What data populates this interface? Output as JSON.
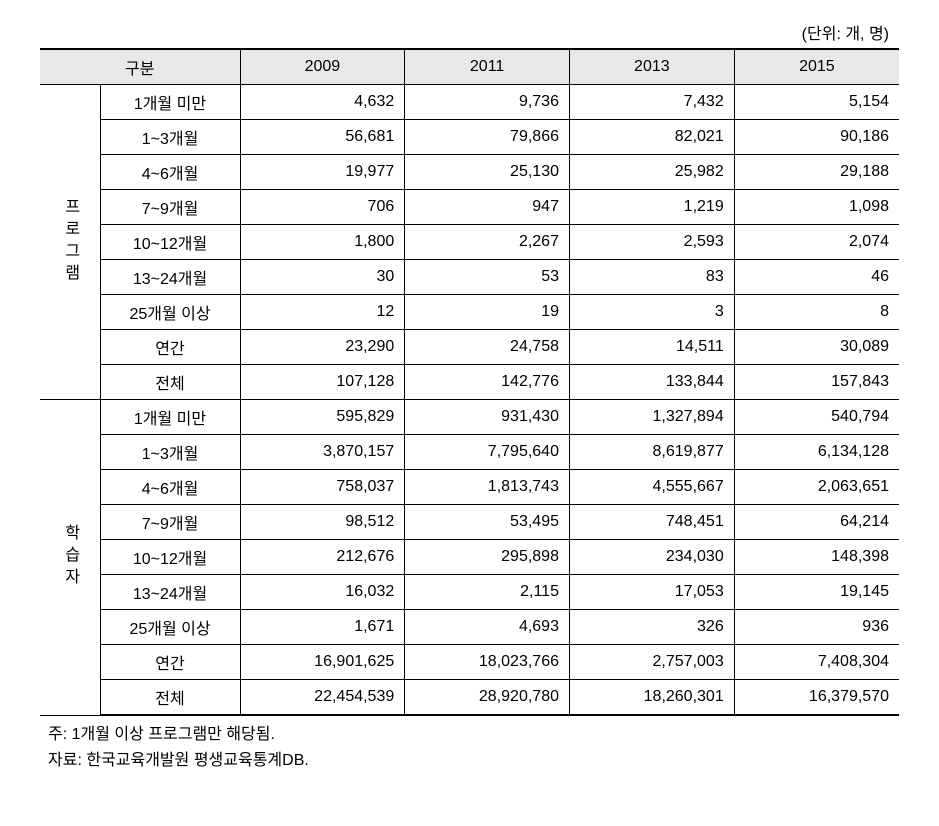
{
  "unit_label": "(단위: 개, 명)",
  "header": {
    "category": "구분",
    "years": [
      "2009",
      "2011",
      "2013",
      "2015"
    ]
  },
  "groups": [
    {
      "name": "프로그램",
      "rows": [
        {
          "label": "1개월 미만",
          "values": [
            "4,632",
            "9,736",
            "7,432",
            "5,154"
          ]
        },
        {
          "label": "1~3개월",
          "values": [
            "56,681",
            "79,866",
            "82,021",
            "90,186"
          ]
        },
        {
          "label": "4~6개월",
          "values": [
            "19,977",
            "25,130",
            "25,982",
            "29,188"
          ]
        },
        {
          "label": "7~9개월",
          "values": [
            "706",
            "947",
            "1,219",
            "1,098"
          ]
        },
        {
          "label": "10~12개월",
          "values": [
            "1,800",
            "2,267",
            "2,593",
            "2,074"
          ]
        },
        {
          "label": "13~24개월",
          "values": [
            "30",
            "53",
            "83",
            "46"
          ]
        },
        {
          "label": "25개월 이상",
          "values": [
            "12",
            "19",
            "3",
            "8"
          ]
        },
        {
          "label": "연간",
          "values": [
            "23,290",
            "24,758",
            "14,511",
            "30,089"
          ]
        },
        {
          "label": "전체",
          "values": [
            "107,128",
            "142,776",
            "133,844",
            "157,843"
          ]
        }
      ]
    },
    {
      "name": "학습자",
      "rows": [
        {
          "label": "1개월 미만",
          "values": [
            "595,829",
            "931,430",
            "1,327,894",
            "540,794"
          ]
        },
        {
          "label": "1~3개월",
          "values": [
            "3,870,157",
            "7,795,640",
            "8,619,877",
            "6,134,128"
          ]
        },
        {
          "label": "4~6개월",
          "values": [
            "758,037",
            "1,813,743",
            "4,555,667",
            "2,063,651"
          ]
        },
        {
          "label": "7~9개월",
          "values": [
            "98,512",
            "53,495",
            "748,451",
            "64,214"
          ]
        },
        {
          "label": "10~12개월",
          "values": [
            "212,676",
            "295,898",
            "234,030",
            "148,398"
          ]
        },
        {
          "label": "13~24개월",
          "values": [
            "16,032",
            "2,115",
            "17,053",
            "19,145"
          ]
        },
        {
          "label": "25개월 이상",
          "values": [
            "1,671",
            "4,693",
            "326",
            "936"
          ]
        },
        {
          "label": "연간",
          "values": [
            "16,901,625",
            "18,023,766",
            "2,757,003",
            "7,408,304"
          ]
        },
        {
          "label": "전체",
          "values": [
            "22,454,539",
            "28,920,780",
            "18,260,301",
            "16,379,570"
          ]
        }
      ]
    }
  ],
  "notes": [
    "주: 1개월 이상 프로그램만 해당됨.",
    "자료: 한국교육개발원 평생교육통계DB."
  ],
  "style": {
    "background_color": "#ffffff",
    "header_bg": "#e8e8e8",
    "border_color": "#000000",
    "font_family": "Malgun Gothic",
    "font_size_pt": 12
  }
}
